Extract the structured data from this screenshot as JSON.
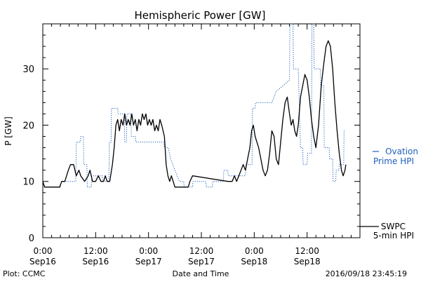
{
  "chart_data": {
    "type": "line",
    "title": "Hemispheric Power [GW]",
    "ylabel": "P [GW]",
    "xlabel": "Date and Time",
    "x_unit": "hours since 2016-09-16 00:00",
    "xlim": [
      0,
      72
    ],
    "ylim": [
      0,
      38
    ],
    "yticks": [
      0,
      10,
      20,
      30
    ],
    "xticks": [
      {
        "x": 0,
        "time": "0:00",
        "date": "Sep16"
      },
      {
        "x": 12,
        "time": "12:00",
        "date": "Sep16"
      },
      {
        "x": 24,
        "time": "0:00",
        "date": "Sep17"
      },
      {
        "x": 36,
        "time": "12:00",
        "date": "Sep17"
      },
      {
        "x": 48,
        "time": "0:00",
        "date": "Sep18"
      },
      {
        "x": 60,
        "time": "12:00",
        "date": "Sep18"
      }
    ],
    "grid": false,
    "series": [
      {
        "name": "Ovation Prime HPI",
        "legend_lines": [
          "Ovation",
          "Prime HPI"
        ],
        "color": "#1f5fbf",
        "style": "dotted",
        "points": [
          [
            0,
            10
          ],
          [
            0.5,
            9
          ],
          [
            4,
            9
          ],
          [
            4.2,
            10
          ],
          [
            7.5,
            10
          ],
          [
            7.6,
            17
          ],
          [
            8.5,
            17
          ],
          [
            8.6,
            18
          ],
          [
            9.2,
            18
          ],
          [
            9.3,
            13
          ],
          [
            10,
            13
          ],
          [
            10.1,
            9
          ],
          [
            11,
            9
          ],
          [
            11.1,
            11
          ],
          [
            13.5,
            11
          ],
          [
            13.6,
            10
          ],
          [
            15,
            10
          ],
          [
            15.1,
            17
          ],
          [
            15.5,
            17
          ],
          [
            15.6,
            23
          ],
          [
            17,
            23
          ],
          [
            17.1,
            22
          ],
          [
            18.5,
            22
          ],
          [
            18.6,
            17
          ],
          [
            19,
            17
          ],
          [
            19.1,
            22
          ],
          [
            20,
            22
          ],
          [
            20.1,
            18
          ],
          [
            21,
            18
          ],
          [
            21.1,
            17
          ],
          [
            27.5,
            17
          ],
          [
            27.6,
            16
          ],
          [
            28.5,
            16
          ],
          [
            29,
            14
          ],
          [
            31,
            10
          ],
          [
            32,
            10
          ],
          [
            32.1,
            9
          ],
          [
            34,
            9
          ],
          [
            34.1,
            10
          ],
          [
            37,
            10
          ],
          [
            37.1,
            9
          ],
          [
            38.5,
            9
          ],
          [
            38.6,
            10
          ],
          [
            41,
            10
          ],
          [
            41.1,
            12
          ],
          [
            42,
            12
          ],
          [
            42.1,
            11
          ],
          [
            46,
            11
          ],
          [
            46.1,
            13
          ],
          [
            47.5,
            13
          ],
          [
            47.6,
            23
          ],
          [
            48.2,
            23
          ],
          [
            48.3,
            24
          ],
          [
            52,
            24
          ],
          [
            53,
            26
          ],
          [
            56,
            28
          ],
          [
            56.1,
            38
          ],
          [
            56.8,
            38
          ],
          [
            56.9,
            30
          ],
          [
            58,
            30
          ],
          [
            58.5,
            16
          ],
          [
            59,
            16
          ],
          [
            59.1,
            13
          ],
          [
            60,
            13
          ],
          [
            60.1,
            15
          ],
          [
            61,
            15
          ],
          [
            61.1,
            38
          ],
          [
            61.5,
            38
          ],
          [
            61.6,
            30
          ],
          [
            63,
            30
          ],
          [
            63.1,
            27
          ],
          [
            63.8,
            27
          ],
          [
            63.9,
            16
          ],
          [
            65,
            16
          ],
          [
            65.1,
            14
          ],
          [
            65.8,
            14
          ],
          [
            65.9,
            10
          ],
          [
            66.5,
            10
          ],
          [
            66.6,
            12
          ],
          [
            67.2,
            12
          ],
          [
            67.3,
            13
          ],
          [
            68.3,
            13
          ],
          [
            68.4,
            19
          ],
          [
            68.8,
            19
          ]
        ]
      },
      {
        "name": "SWPC 5-min HPI",
        "legend_lines": [
          "SWPC",
          "5-min HPI"
        ],
        "color": "#000000",
        "style": "solid",
        "points": [
          [
            0,
            10
          ],
          [
            0.4,
            9
          ],
          [
            3.8,
            9
          ],
          [
            4.3,
            10
          ],
          [
            5,
            10
          ],
          [
            5.8,
            12
          ],
          [
            6.3,
            13
          ],
          [
            7,
            13
          ],
          [
            7.3,
            12
          ],
          [
            7.6,
            11
          ],
          [
            8.2,
            12
          ],
          [
            8.6,
            11
          ],
          [
            9.5,
            10
          ],
          [
            10.3,
            11
          ],
          [
            10.7,
            12
          ],
          [
            11.3,
            10
          ],
          [
            12,
            10
          ],
          [
            12.6,
            11
          ],
          [
            13.2,
            10
          ],
          [
            13.8,
            10
          ],
          [
            14.2,
            11
          ],
          [
            14.6,
            10
          ],
          [
            15.2,
            10
          ],
          [
            15.8,
            13
          ],
          [
            16.2,
            16
          ],
          [
            16.6,
            20
          ],
          [
            17,
            21
          ],
          [
            17.4,
            19
          ],
          [
            17.8,
            21
          ],
          [
            18.2,
            20
          ],
          [
            18.6,
            22
          ],
          [
            19,
            20
          ],
          [
            19.4,
            21
          ],
          [
            19.8,
            20
          ],
          [
            20.2,
            22
          ],
          [
            20.6,
            20
          ],
          [
            21,
            21
          ],
          [
            21.4,
            19
          ],
          [
            21.8,
            21
          ],
          [
            22.2,
            20
          ],
          [
            22.6,
            22
          ],
          [
            23,
            21
          ],
          [
            23.4,
            22
          ],
          [
            23.8,
            20
          ],
          [
            24.2,
            21
          ],
          [
            24.6,
            20
          ],
          [
            25,
            21
          ],
          [
            25.4,
            19
          ],
          [
            25.8,
            20
          ],
          [
            26.2,
            19
          ],
          [
            26.6,
            21
          ],
          [
            27,
            20
          ],
          [
            27.6,
            18
          ],
          [
            28,
            13
          ],
          [
            28.4,
            11
          ],
          [
            28.8,
            10
          ],
          [
            29.2,
            11
          ],
          [
            29.6,
            10
          ],
          [
            30,
            9
          ],
          [
            33,
            9
          ],
          [
            33.4,
            10
          ],
          [
            34,
            11
          ],
          [
            42,
            10
          ],
          [
            43,
            10
          ],
          [
            43.5,
            11
          ],
          [
            44,
            10
          ],
          [
            44.5,
            11
          ],
          [
            45,
            12
          ],
          [
            45.5,
            13
          ],
          [
            46,
            12
          ],
          [
            46.5,
            14
          ],
          [
            47,
            16
          ],
          [
            47.4,
            19
          ],
          [
            47.8,
            20
          ],
          [
            48.2,
            18
          ],
          [
            48.6,
            17
          ],
          [
            49,
            16
          ],
          [
            49.5,
            14
          ],
          [
            50,
            12
          ],
          [
            50.5,
            11
          ],
          [
            51,
            12
          ],
          [
            51.5,
            15
          ],
          [
            52,
            19
          ],
          [
            52.5,
            18
          ],
          [
            53,
            14
          ],
          [
            53.5,
            13
          ],
          [
            54,
            17
          ],
          [
            54.5,
            21
          ],
          [
            55,
            24
          ],
          [
            55.5,
            25
          ],
          [
            56,
            22
          ],
          [
            56.4,
            20
          ],
          [
            56.8,
            21
          ],
          [
            57.2,
            19
          ],
          [
            57.6,
            18
          ],
          [
            58,
            20
          ],
          [
            58.5,
            25
          ],
          [
            59,
            27
          ],
          [
            59.5,
            29
          ],
          [
            60,
            28
          ],
          [
            60.5,
            25
          ],
          [
            61,
            21
          ],
          [
            61.5,
            18
          ],
          [
            62,
            16
          ],
          [
            62.6,
            20
          ],
          [
            63.2,
            27
          ],
          [
            63.8,
            31
          ],
          [
            64.3,
            34
          ],
          [
            64.8,
            35
          ],
          [
            65.3,
            34
          ],
          [
            65.8,
            30
          ],
          [
            66.3,
            24
          ],
          [
            66.8,
            19
          ],
          [
            67.3,
            15
          ],
          [
            67.8,
            12
          ],
          [
            68.2,
            11
          ],
          [
            68.6,
            12
          ],
          [
            68.8,
            13
          ]
        ]
      }
    ]
  },
  "footer": {
    "plot_label": "Plot: CCMC",
    "timestamp": "2016/09/18 23:45:19"
  }
}
